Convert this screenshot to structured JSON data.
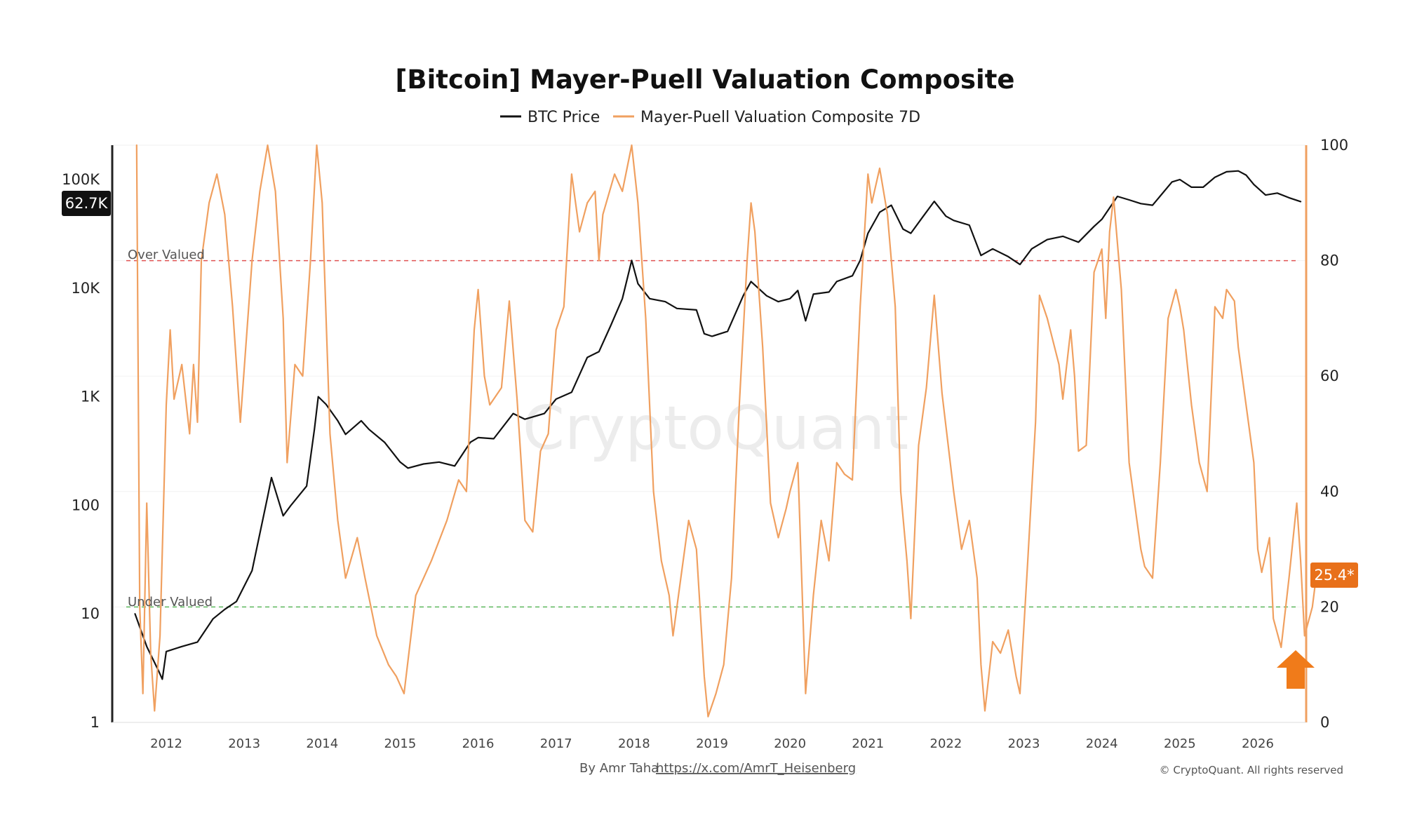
{
  "chart_data": {
    "type": "line",
    "title": "[Bitcoin] Mayer-Puell Valuation Composite",
    "legend": [
      "BTC Price",
      "Mayer-Puell Valuation Composite 7D"
    ],
    "legend_placement": "top-center",
    "grid": true,
    "x_ticks": [
      "2012",
      "2013",
      "2014",
      "2015",
      "2016",
      "2017",
      "2018",
      "2019",
      "2020",
      "2021",
      "2022",
      "2023",
      "2024",
      "2025",
      "2026"
    ],
    "y_left": {
      "scale": "log",
      "ticks": [
        "1",
        "10",
        "100",
        "1K",
        "10K",
        "100K"
      ],
      "range": [
        1,
        200000
      ]
    },
    "y_right": {
      "scale": "linear",
      "ticks": [
        "0",
        "20",
        "40",
        "60",
        "80",
        "100"
      ],
      "range": [
        0,
        100
      ]
    },
    "price_badge": "62.7K",
    "composite_badge": "25.4*",
    "thresholds": [
      {
        "label": "Over Valued",
        "value": 80,
        "color": "#e05252"
      },
      {
        "label": "Under Valued",
        "value": 20,
        "color": "#5cb85c"
      }
    ],
    "series": [
      {
        "name": "BTC Price",
        "axis": "left",
        "color": "#111111",
        "points": [
          [
            2011.6,
            10
          ],
          [
            2011.75,
            5
          ],
          [
            2011.9,
            3
          ],
          [
            2011.95,
            2.5
          ],
          [
            2012.0,
            4.5
          ],
          [
            2012.2,
            5
          ],
          [
            2012.4,
            5.5
          ],
          [
            2012.6,
            9
          ],
          [
            2012.75,
            11
          ],
          [
            2012.9,
            13
          ],
          [
            2013.1,
            25
          ],
          [
            2013.3,
            120
          ],
          [
            2013.35,
            180
          ],
          [
            2013.5,
            80
          ],
          [
            2013.6,
            100
          ],
          [
            2013.8,
            150
          ],
          [
            2013.9,
            500
          ],
          [
            2013.95,
            1000
          ],
          [
            2014.05,
            850
          ],
          [
            2014.2,
            600
          ],
          [
            2014.3,
            450
          ],
          [
            2014.5,
            600
          ],
          [
            2014.6,
            500
          ],
          [
            2014.8,
            380
          ],
          [
            2015.0,
            250
          ],
          [
            2015.1,
            220
          ],
          [
            2015.3,
            240
          ],
          [
            2015.5,
            250
          ],
          [
            2015.7,
            230
          ],
          [
            2015.9,
            380
          ],
          [
            2016.0,
            420
          ],
          [
            2016.2,
            410
          ],
          [
            2016.45,
            700
          ],
          [
            2016.6,
            620
          ],
          [
            2016.85,
            700
          ],
          [
            2017.0,
            950
          ],
          [
            2017.2,
            1100
          ],
          [
            2017.4,
            2300
          ],
          [
            2017.55,
            2600
          ],
          [
            2017.7,
            4500
          ],
          [
            2017.85,
            8000
          ],
          [
            2017.97,
            18000
          ],
          [
            2018.05,
            11000
          ],
          [
            2018.2,
            8000
          ],
          [
            2018.4,
            7500
          ],
          [
            2018.55,
            6500
          ],
          [
            2018.8,
            6300
          ],
          [
            2018.9,
            3800
          ],
          [
            2019.0,
            3600
          ],
          [
            2019.2,
            4000
          ],
          [
            2019.4,
            8500
          ],
          [
            2019.5,
            11500
          ],
          [
            2019.7,
            8500
          ],
          [
            2019.85,
            7500
          ],
          [
            2020.0,
            8000
          ],
          [
            2020.1,
            9500
          ],
          [
            2020.2,
            5000
          ],
          [
            2020.3,
            8800
          ],
          [
            2020.5,
            9200
          ],
          [
            2020.6,
            11500
          ],
          [
            2020.8,
            13000
          ],
          [
            2020.9,
            18000
          ],
          [
            2021.0,
            32000
          ],
          [
            2021.15,
            50000
          ],
          [
            2021.3,
            58000
          ],
          [
            2021.45,
            35000
          ],
          [
            2021.55,
            32000
          ],
          [
            2021.7,
            45000
          ],
          [
            2021.85,
            63000
          ],
          [
            2022.0,
            46000
          ],
          [
            2022.1,
            42000
          ],
          [
            2022.3,
            38000
          ],
          [
            2022.45,
            20000
          ],
          [
            2022.6,
            23000
          ],
          [
            2022.8,
            19500
          ],
          [
            2022.95,
            16500
          ],
          [
            2023.1,
            23000
          ],
          [
            2023.3,
            28000
          ],
          [
            2023.5,
            30000
          ],
          [
            2023.7,
            26500
          ],
          [
            2023.9,
            37000
          ],
          [
            2024.0,
            43000
          ],
          [
            2024.2,
            70000
          ],
          [
            2024.35,
            65000
          ],
          [
            2024.5,
            60000
          ],
          [
            2024.65,
            58000
          ],
          [
            2024.9,
            95000
          ],
          [
            2025.0,
            100000
          ],
          [
            2025.15,
            85000
          ],
          [
            2025.3,
            85000
          ],
          [
            2025.45,
            105000
          ],
          [
            2025.6,
            118000
          ],
          [
            2025.75,
            120000
          ],
          [
            2025.85,
            110000
          ],
          [
            2025.95,
            90000
          ],
          [
            2026.1,
            72000
          ],
          [
            2026.25,
            75000
          ],
          [
            2026.4,
            68000
          ],
          [
            2026.55,
            62700
          ]
        ]
      },
      {
        "name": "Mayer-Puell Valuation Composite 7D",
        "axis": "right",
        "color": "#f0a060",
        "points": [
          [
            2011.62,
            100
          ],
          [
            2011.66,
            20
          ],
          [
            2011.7,
            5
          ],
          [
            2011.75,
            38
          ],
          [
            2011.8,
            12
          ],
          [
            2011.85,
            2
          ],
          [
            2011.92,
            15
          ],
          [
            2012.0,
            55
          ],
          [
            2012.05,
            68
          ],
          [
            2012.1,
            56
          ],
          [
            2012.2,
            62
          ],
          [
            2012.3,
            50
          ],
          [
            2012.35,
            62
          ],
          [
            2012.4,
            52
          ],
          [
            2012.45,
            80
          ],
          [
            2012.55,
            90
          ],
          [
            2012.65,
            95
          ],
          [
            2012.75,
            88
          ],
          [
            2012.85,
            72
          ],
          [
            2012.95,
            52
          ],
          [
            2013.1,
            80
          ],
          [
            2013.2,
            92
          ],
          [
            2013.3,
            100
          ],
          [
            2013.4,
            92
          ],
          [
            2013.5,
            70
          ],
          [
            2013.55,
            45
          ],
          [
            2013.65,
            62
          ],
          [
            2013.75,
            60
          ],
          [
            2013.85,
            80
          ],
          [
            2013.93,
            100
          ],
          [
            2014.0,
            90
          ],
          [
            2014.1,
            50
          ],
          [
            2014.2,
            35
          ],
          [
            2014.3,
            25
          ],
          [
            2014.45,
            32
          ],
          [
            2014.55,
            25
          ],
          [
            2014.7,
            15
          ],
          [
            2014.85,
            10
          ],
          [
            2014.95,
            8
          ],
          [
            2015.05,
            5
          ],
          [
            2015.2,
            22
          ],
          [
            2015.4,
            28
          ],
          [
            2015.6,
            35
          ],
          [
            2015.75,
            42
          ],
          [
            2015.85,
            40
          ],
          [
            2015.95,
            68
          ],
          [
            2016.0,
            75
          ],
          [
            2016.08,
            60
          ],
          [
            2016.15,
            55
          ],
          [
            2016.3,
            58
          ],
          [
            2016.4,
            73
          ],
          [
            2016.5,
            56
          ],
          [
            2016.6,
            35
          ],
          [
            2016.7,
            33
          ],
          [
            2016.8,
            47
          ],
          [
            2016.9,
            50
          ],
          [
            2017.0,
            68
          ],
          [
            2017.1,
            72
          ],
          [
            2017.2,
            95
          ],
          [
            2017.3,
            85
          ],
          [
            2017.4,
            90
          ],
          [
            2017.5,
            92
          ],
          [
            2017.55,
            80
          ],
          [
            2017.6,
            88
          ],
          [
            2017.75,
            95
          ],
          [
            2017.85,
            92
          ],
          [
            2017.97,
            100
          ],
          [
            2018.05,
            90
          ],
          [
            2018.15,
            70
          ],
          [
            2018.25,
            40
          ],
          [
            2018.35,
            28
          ],
          [
            2018.45,
            22
          ],
          [
            2018.5,
            15
          ],
          [
            2018.6,
            25
          ],
          [
            2018.7,
            35
          ],
          [
            2018.8,
            30
          ],
          [
            2018.9,
            8
          ],
          [
            2018.95,
            1
          ],
          [
            2019.05,
            5
          ],
          [
            2019.15,
            10
          ],
          [
            2019.25,
            25
          ],
          [
            2019.35,
            55
          ],
          [
            2019.45,
            80
          ],
          [
            2019.5,
            90
          ],
          [
            2019.55,
            85
          ],
          [
            2019.65,
            65
          ],
          [
            2019.75,
            38
          ],
          [
            2019.85,
            32
          ],
          [
            2019.95,
            37
          ],
          [
            2020.0,
            40
          ],
          [
            2020.1,
            45
          ],
          [
            2020.2,
            5
          ],
          [
            2020.3,
            22
          ],
          [
            2020.4,
            35
          ],
          [
            2020.5,
            28
          ],
          [
            2020.6,
            45
          ],
          [
            2020.7,
            43
          ],
          [
            2020.8,
            42
          ],
          [
            2020.9,
            72
          ],
          [
            2021.0,
            95
          ],
          [
            2021.05,
            90
          ],
          [
            2021.15,
            96
          ],
          [
            2021.25,
            88
          ],
          [
            2021.35,
            72
          ],
          [
            2021.42,
            40
          ],
          [
            2021.5,
            28
          ],
          [
            2021.55,
            18
          ],
          [
            2021.65,
            48
          ],
          [
            2021.75,
            58
          ],
          [
            2021.85,
            74
          ],
          [
            2021.95,
            57
          ],
          [
            2022.1,
            40
          ],
          [
            2022.2,
            30
          ],
          [
            2022.3,
            35
          ],
          [
            2022.4,
            25
          ],
          [
            2022.45,
            10
          ],
          [
            2022.5,
            2
          ],
          [
            2022.6,
            14
          ],
          [
            2022.7,
            12
          ],
          [
            2022.8,
            16
          ],
          [
            2022.9,
            8
          ],
          [
            2022.95,
            5
          ],
          [
            2023.05,
            28
          ],
          [
            2023.15,
            52
          ],
          [
            2023.2,
            74
          ],
          [
            2023.3,
            70
          ],
          [
            2023.45,
            62
          ],
          [
            2023.5,
            56
          ],
          [
            2023.6,
            68
          ],
          [
            2023.65,
            60
          ],
          [
            2023.7,
            47
          ],
          [
            2023.8,
            48
          ],
          [
            2023.9,
            78
          ],
          [
            2024.0,
            82
          ],
          [
            2024.05,
            70
          ],
          [
            2024.1,
            85
          ],
          [
            2024.15,
            91
          ],
          [
            2024.25,
            75
          ],
          [
            2024.35,
            45
          ],
          [
            2024.45,
            35
          ],
          [
            2024.5,
            30
          ],
          [
            2024.55,
            27
          ],
          [
            2024.65,
            25
          ],
          [
            2024.75,
            45
          ],
          [
            2024.85,
            70
          ],
          [
            2024.95,
            75
          ],
          [
            2025.0,
            72
          ],
          [
            2025.05,
            68
          ],
          [
            2025.15,
            55
          ],
          [
            2025.25,
            45
          ],
          [
            2025.35,
            40
          ],
          [
            2025.45,
            72
          ],
          [
            2025.55,
            70
          ],
          [
            2025.6,
            75
          ],
          [
            2025.7,
            73
          ],
          [
            2025.75,
            65
          ],
          [
            2025.85,
            55
          ],
          [
            2025.95,
            45
          ],
          [
            2026.0,
            30
          ],
          [
            2026.05,
            26
          ],
          [
            2026.15,
            32
          ],
          [
            2026.2,
            18
          ],
          [
            2026.3,
            13
          ],
          [
            2026.4,
            25
          ],
          [
            2026.5,
            38
          ],
          [
            2026.55,
            28
          ],
          [
            2026.6,
            15
          ],
          [
            2026.7,
            20
          ],
          [
            2026.75,
            25.4
          ]
        ]
      }
    ],
    "watermark": "CryptoQuant"
  },
  "footer": {
    "author": "By Amr Taha",
    "link": "https://x.com/AmrT_Heisenberg",
    "copyright": "© CryptoQuant. All rights reserved"
  }
}
